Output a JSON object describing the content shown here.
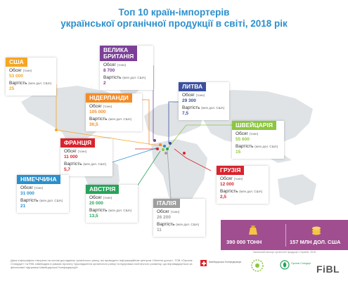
{
  "title": {
    "line1": "Топ 10 країн-імпортерів",
    "line2": "української органічної продукції в світі, 2018 рік"
  },
  "labels": {
    "volume": "Обсяг",
    "volume_unit": "(тонн)",
    "value": "Вартість",
    "value_unit": "(млн дол. США)"
  },
  "countries": [
    {
      "name": "США",
      "volume": "53 000",
      "value": "25",
      "color": "#f5a623"
    },
    {
      "name": "ВЕЛИКА\nБРИТАНІЯ",
      "volume": "8 700",
      "value": "2",
      "color": "#7b3f98"
    },
    {
      "name": "НІДЕРЛАНДИ",
      "volume": "105 000",
      "value": "30,5",
      "color": "#f28c28"
    },
    {
      "name": "ЛИТВА",
      "volume": "29 300",
      "value": "7,5",
      "color": "#3a4fa0"
    },
    {
      "name": "ШВЕЙЦАРІЯ",
      "volume": "55 600",
      "value": "15",
      "color": "#8cc63f"
    },
    {
      "name": "ФРАНЦІЯ",
      "volume": "11 000",
      "value": "5,7",
      "color": "#d9232d"
    },
    {
      "name": "ГРУЗІЯ",
      "volume": "12 000",
      "value": "2,5",
      "color": "#d9232d"
    },
    {
      "name": "НІМЕЧЧИНА",
      "volume": "31 000",
      "value": "21",
      "color": "#2b8fcb"
    },
    {
      "name": "АВСТРІЯ",
      "volume": "20 000",
      "value": "13,5",
      "color": "#27a35a"
    },
    {
      "name": "ІТАЛІЯ",
      "volume": "26 200",
      "value": "11",
      "color": "#9e9e9e"
    }
  ],
  "totals": {
    "volume": "390 000 ТОНН",
    "value": "157 МЛН ДОЛ. США",
    "caption": "Загальний експорт органічної продукції з України, 2018",
    "color": "#a04e90"
  },
  "footer": {
    "text": "Дана інфографіка створена на основі досліджень органічного ринку, які проведено Інформаційним центром «Зелене досьє», ТОВ «Органік Стандарт» та FiBL Швейцарія в рамках проекту «Дослідження органічного ринку та підтримка політичного розвитку, що впроваджується за фінансової підтримки Швейцарської Конфедерації»"
  },
  "logos": {
    "swiss": "Швейцарська Конфедерація",
    "organic_standard": "Органік Стандарт",
    "fibl": "FiBL"
  }
}
